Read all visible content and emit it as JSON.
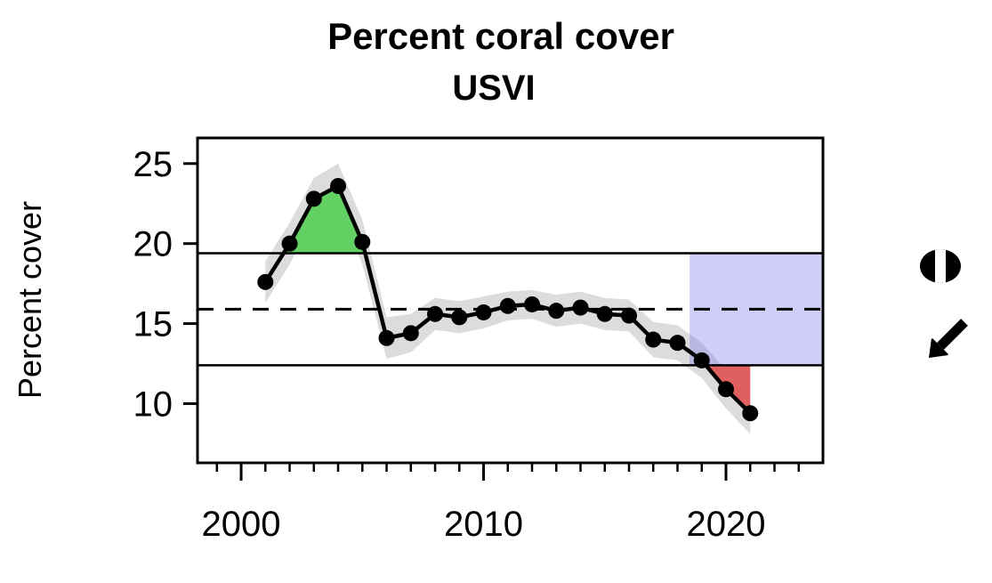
{
  "chart_data": {
    "type": "line",
    "title": "Percent coral cover",
    "subtitle": "USVI",
    "xlabel": "",
    "ylabel": "Percent cover",
    "x": [
      2001,
      2002,
      2003,
      2004,
      2005,
      2006,
      2007,
      2008,
      2009,
      2010,
      2011,
      2012,
      2013,
      2014,
      2015,
      2016,
      2017,
      2018,
      2019,
      2020,
      2021
    ],
    "values": [
      17.6,
      20.0,
      22.8,
      23.6,
      20.1,
      14.1,
      14.4,
      15.6,
      15.4,
      15.7,
      16.1,
      16.2,
      15.8,
      16.0,
      15.6,
      15.5,
      14.0,
      13.8,
      12.7,
      10.9,
      9.4
    ],
    "ci_upper": [
      18.9,
      21.3,
      24.1,
      25.0,
      21.5,
      15.4,
      15.6,
      16.6,
      16.4,
      16.7,
      17.0,
      17.1,
      16.8,
      17.0,
      16.6,
      16.5,
      15.1,
      14.9,
      13.8,
      12.1,
      10.7
    ],
    "ci_lower": [
      16.3,
      18.7,
      21.5,
      22.2,
      18.7,
      12.8,
      13.2,
      14.6,
      14.4,
      14.7,
      15.2,
      15.3,
      14.8,
      15.0,
      14.6,
      14.5,
      12.9,
      12.7,
      11.6,
      9.7,
      8.1
    ],
    "mean": 15.9,
    "upper_threshold": 19.4,
    "lower_threshold": 12.4,
    "assessment_window": {
      "x_start": 2018.5,
      "x_end": 2024.0,
      "y_bottom": 12.4,
      "y_top": 19.4
    },
    "xlim": [
      1998.2,
      2024.0
    ],
    "ylim": [
      6.3,
      26.6
    ],
    "xticks_major": [
      2000,
      2010,
      2020
    ],
    "xticks_minor": [
      1999,
      2000,
      2001,
      2002,
      2003,
      2004,
      2005,
      2006,
      2007,
      2008,
      2009,
      2010,
      2011,
      2012,
      2013,
      2014,
      2015,
      2016,
      2017,
      2018,
      2019,
      2020,
      2021,
      2022,
      2023
    ],
    "yticks": [
      10,
      15,
      20,
      25
    ],
    "grid": false,
    "legend": "none"
  },
  "colors": {
    "line": "#000000",
    "point": "#000000",
    "band": "#d8d8d8",
    "above_fill": "#63d063",
    "below_fill": "#e05f5f",
    "window_fill": "rgba(115,115,235,0.35)",
    "reference_line": "#000000"
  },
  "icons": {
    "status_symbol": "circle-within-range-icon",
    "trend_symbol": "decreasing-trend-arrow-icon"
  }
}
